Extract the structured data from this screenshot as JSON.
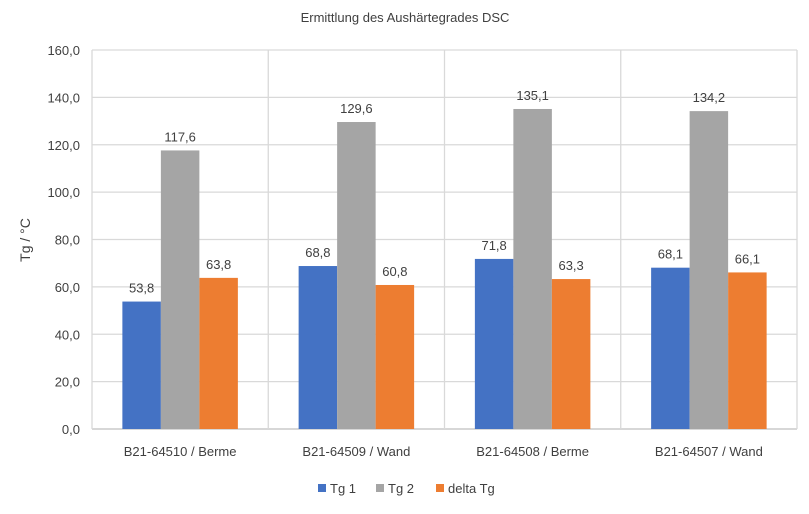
{
  "chart_data": {
    "type": "bar",
    "title": "Ermittlung des Aushärtegrades DSC",
    "xlabel": "",
    "ylabel": "Tg / °C",
    "ylim": [
      0,
      160
    ],
    "yticks": [
      "0,0",
      "20,0",
      "40,0",
      "60,0",
      "80,0",
      "100,0",
      "120,0",
      "140,0",
      "160,0"
    ],
    "grid": true,
    "legend_position": "bottom",
    "categories": [
      "B21-64510 / Berme",
      "B21-64509 / Wand",
      "B21-64508 / Berme",
      "B21-64507 / Wand"
    ],
    "series": [
      {
        "name": "Tg 1",
        "color": "#4472C4",
        "values": [
          53.8,
          68.8,
          71.8,
          68.1
        ],
        "labels": [
          "53,8",
          "68,8",
          "71,8",
          "68,1"
        ]
      },
      {
        "name": "Tg 2",
        "color": "#A5A5A5",
        "values": [
          117.6,
          129.6,
          135.1,
          134.2
        ],
        "labels": [
          "117,6",
          "129,6",
          "135,1",
          "134,2"
        ]
      },
      {
        "name": "delta Tg",
        "color": "#ED7D31",
        "values": [
          63.8,
          60.8,
          63.3,
          66.1
        ],
        "labels": [
          "63,8",
          "60,8",
          "63,3",
          "66,1"
        ]
      }
    ]
  }
}
